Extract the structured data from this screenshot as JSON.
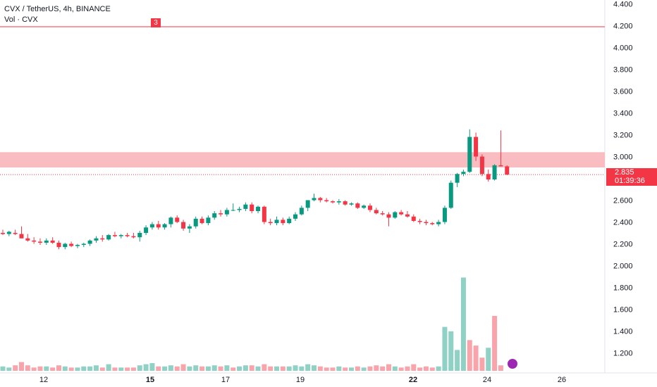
{
  "header": {
    "title": "CVX / TetherUS, 4h, BINANCE",
    "volume_label": "Vol · CVX",
    "alert_count": "3"
  },
  "last_price": {
    "price": "2.835",
    "countdown": "01:39:36"
  },
  "colors": {
    "up": "#089981",
    "down": "#f23645",
    "zone": "#f8bcc1",
    "alert_line": "#f23645"
  },
  "chart_data": {
    "type": "candlestick",
    "symbol": "CVX / TetherUS",
    "interval": "4h",
    "exchange": "BINANCE",
    "y_axis": {
      "min": 1.05,
      "max": 4.45,
      "ticks": [
        "4.400",
        "4.200",
        "4.000",
        "3.800",
        "3.600",
        "3.400",
        "3.200",
        "3.000",
        "2.800",
        "2.600",
        "2.400",
        "2.200",
        "2.000",
        "1.800",
        "1.600",
        "1.400",
        "1.200"
      ]
    },
    "x_axis": {
      "ticks": [
        "12",
        "15",
        "17",
        "19",
        "22",
        "24",
        "26"
      ],
      "major": [
        "15",
        "22"
      ]
    },
    "horizontal_line": 4.19,
    "resistance_zone": [
      2.9,
      3.04
    ],
    "last_price": 2.835,
    "candles": [
      [
        2.3,
        2.33,
        2.28,
        2.29
      ],
      [
        2.29,
        2.32,
        2.27,
        2.31
      ],
      [
        2.3,
        2.33,
        2.28,
        2.29
      ],
      [
        2.29,
        2.36,
        2.25,
        2.25
      ],
      [
        2.25,
        2.29,
        2.22,
        2.23
      ],
      [
        2.23,
        2.26,
        2.2,
        2.22
      ],
      [
        2.22,
        2.25,
        2.19,
        2.21
      ],
      [
        2.21,
        2.25,
        2.19,
        2.23
      ],
      [
        2.23,
        2.26,
        2.2,
        2.21
      ],
      [
        2.21,
        2.23,
        2.15,
        2.17
      ],
      [
        2.17,
        2.21,
        2.15,
        2.2
      ],
      [
        2.2,
        2.22,
        2.17,
        2.18
      ],
      [
        2.18,
        2.2,
        2.16,
        2.19
      ],
      [
        2.19,
        2.21,
        2.17,
        2.2
      ],
      [
        2.2,
        2.24,
        2.18,
        2.23
      ],
      [
        2.23,
        2.27,
        2.21,
        2.25
      ],
      [
        2.25,
        2.28,
        2.22,
        2.24
      ],
      [
        2.24,
        2.29,
        2.23,
        2.28
      ],
      [
        2.28,
        2.31,
        2.26,
        2.27
      ],
      [
        2.27,
        2.29,
        2.25,
        2.28
      ],
      [
        2.28,
        2.3,
        2.26,
        2.27
      ],
      [
        2.27,
        2.3,
        2.25,
        2.26
      ],
      [
        2.26,
        2.32,
        2.22,
        2.3
      ],
      [
        2.3,
        2.37,
        2.28,
        2.35
      ],
      [
        2.35,
        2.4,
        2.33,
        2.38
      ],
      [
        2.38,
        2.41,
        2.33,
        2.35
      ],
      [
        2.35,
        2.39,
        2.33,
        2.38
      ],
      [
        2.38,
        2.45,
        2.35,
        2.44
      ],
      [
        2.44,
        2.46,
        2.39,
        2.4
      ],
      [
        2.4,
        2.42,
        2.32,
        2.34
      ],
      [
        2.34,
        2.38,
        2.3,
        2.36
      ],
      [
        2.36,
        2.45,
        2.34,
        2.43
      ],
      [
        2.43,
        2.45,
        2.38,
        2.39
      ],
      [
        2.39,
        2.46,
        2.37,
        2.44
      ],
      [
        2.44,
        2.5,
        2.42,
        2.48
      ],
      [
        2.48,
        2.51,
        2.45,
        2.47
      ],
      [
        2.47,
        2.53,
        2.45,
        2.51
      ],
      [
        2.51,
        2.57,
        2.5,
        2.51
      ],
      [
        2.51,
        2.54,
        2.49,
        2.52
      ],
      [
        2.52,
        2.58,
        2.5,
        2.56
      ],
      [
        2.56,
        2.58,
        2.48,
        2.5
      ],
      [
        2.5,
        2.55,
        2.48,
        2.54
      ],
      [
        2.54,
        2.55,
        2.38,
        2.4
      ],
      [
        2.4,
        2.43,
        2.37,
        2.39
      ],
      [
        2.39,
        2.45,
        2.37,
        2.42
      ],
      [
        2.42,
        2.44,
        2.37,
        2.39
      ],
      [
        2.39,
        2.45,
        2.38,
        2.43
      ],
      [
        2.43,
        2.49,
        2.41,
        2.47
      ],
      [
        2.47,
        2.55,
        2.46,
        2.53
      ],
      [
        2.53,
        2.6,
        2.5,
        2.6
      ],
      [
        2.6,
        2.66,
        2.59,
        2.62
      ],
      [
        2.62,
        2.63,
        2.58,
        2.6
      ],
      [
        2.6,
        2.62,
        2.58,
        2.59
      ],
      [
        2.59,
        2.6,
        2.57,
        2.58
      ],
      [
        2.58,
        2.61,
        2.56,
        2.59
      ],
      [
        2.59,
        2.6,
        2.55,
        2.56
      ],
      [
        2.56,
        2.58,
        2.55,
        2.57
      ],
      [
        2.57,
        2.58,
        2.52,
        2.53
      ],
      [
        2.53,
        2.56,
        2.52,
        2.55
      ],
      [
        2.55,
        2.57,
        2.49,
        2.51
      ],
      [
        2.51,
        2.53,
        2.47,
        2.48
      ],
      [
        2.48,
        2.5,
        2.46,
        2.47
      ],
      [
        2.47,
        2.49,
        2.36,
        2.44
      ],
      [
        2.44,
        2.5,
        2.43,
        2.49
      ],
      [
        2.49,
        2.51,
        2.46,
        2.47
      ],
      [
        2.47,
        2.5,
        2.44,
        2.45
      ],
      [
        2.45,
        2.47,
        2.4,
        2.41
      ],
      [
        2.41,
        2.43,
        2.38,
        2.4
      ],
      [
        2.4,
        2.42,
        2.37,
        2.39
      ],
      [
        2.39,
        2.4,
        2.37,
        2.38
      ],
      [
        2.38,
        2.42,
        2.36,
        2.4
      ],
      [
        2.4,
        2.55,
        2.38,
        2.53
      ],
      [
        2.53,
        2.78,
        2.52,
        2.76
      ],
      [
        2.76,
        2.85,
        2.72,
        2.84
      ],
      [
        2.84,
        2.88,
        2.82,
        2.86
      ],
      [
        2.86,
        3.25,
        2.85,
        3.18
      ],
      [
        3.18,
        3.22,
        2.96,
        3.0
      ],
      [
        3.0,
        3.02,
        2.82,
        2.84
      ],
      [
        2.84,
        2.88,
        2.77,
        2.79
      ],
      [
        2.79,
        2.93,
        2.78,
        2.92
      ],
      [
        2.92,
        3.24,
        2.91,
        2.91
      ],
      [
        2.91,
        2.92,
        2.83,
        2.835
      ]
    ],
    "volumes": [
      [
        0.04,
        "up"
      ],
      [
        0.03,
        "up"
      ],
      [
        0.05,
        "down"
      ],
      [
        0.08,
        "down"
      ],
      [
        0.05,
        "down"
      ],
      [
        0.03,
        "down"
      ],
      [
        0.04,
        "down"
      ],
      [
        0.04,
        "up"
      ],
      [
        0.03,
        "down"
      ],
      [
        0.05,
        "down"
      ],
      [
        0.04,
        "up"
      ],
      [
        0.03,
        "down"
      ],
      [
        0.03,
        "up"
      ],
      [
        0.04,
        "up"
      ],
      [
        0.04,
        "up"
      ],
      [
        0.05,
        "up"
      ],
      [
        0.03,
        "down"
      ],
      [
        0.06,
        "up"
      ],
      [
        0.03,
        "down"
      ],
      [
        0.03,
        "up"
      ],
      [
        0.03,
        "down"
      ],
      [
        0.03,
        "down"
      ],
      [
        0.05,
        "up"
      ],
      [
        0.06,
        "up"
      ],
      [
        0.07,
        "up"
      ],
      [
        0.04,
        "down"
      ],
      [
        0.04,
        "up"
      ],
      [
        0.05,
        "up"
      ],
      [
        0.04,
        "down"
      ],
      [
        0.06,
        "down"
      ],
      [
        0.04,
        "up"
      ],
      [
        0.05,
        "up"
      ],
      [
        0.04,
        "down"
      ],
      [
        0.04,
        "up"
      ],
      [
        0.05,
        "up"
      ],
      [
        0.04,
        "down"
      ],
      [
        0.05,
        "up"
      ],
      [
        0.03,
        "down"
      ],
      [
        0.04,
        "up"
      ],
      [
        0.05,
        "up"
      ],
      [
        0.05,
        "down"
      ],
      [
        0.04,
        "up"
      ],
      [
        0.06,
        "down"
      ],
      [
        0.04,
        "down"
      ],
      [
        0.04,
        "up"
      ],
      [
        0.04,
        "down"
      ],
      [
        0.04,
        "up"
      ],
      [
        0.05,
        "up"
      ],
      [
        0.04,
        "up"
      ],
      [
        0.06,
        "up"
      ],
      [
        0.05,
        "up"
      ],
      [
        0.04,
        "down"
      ],
      [
        0.03,
        "down"
      ],
      [
        0.03,
        "down"
      ],
      [
        0.04,
        "up"
      ],
      [
        0.03,
        "down"
      ],
      [
        0.03,
        "up"
      ],
      [
        0.04,
        "down"
      ],
      [
        0.03,
        "up"
      ],
      [
        0.04,
        "down"
      ],
      [
        0.05,
        "down"
      ],
      [
        0.04,
        "down"
      ],
      [
        0.06,
        "down"
      ],
      [
        0.04,
        "up"
      ],
      [
        0.03,
        "down"
      ],
      [
        0.04,
        "down"
      ],
      [
        0.06,
        "down"
      ],
      [
        0.03,
        "down"
      ],
      [
        0.04,
        "down"
      ],
      [
        0.03,
        "down"
      ],
      [
        0.04,
        "up"
      ],
      [
        0.4,
        "up"
      ],
      [
        0.36,
        "up"
      ],
      [
        0.19,
        "up"
      ],
      [
        0.85,
        "up"
      ],
      [
        0.28,
        "down"
      ],
      [
        0.23,
        "down"
      ],
      [
        0.12,
        "down"
      ],
      [
        0.21,
        "up"
      ],
      [
        0.5,
        "down"
      ],
      [
        0.05,
        "down"
      ]
    ]
  }
}
